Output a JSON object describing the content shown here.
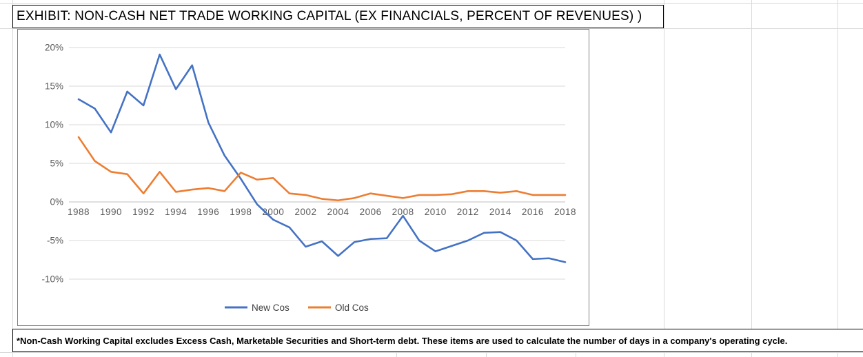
{
  "title": "EXHIBIT: NON-CASH NET TRADE WORKING CAPITAL (EX FINANCIALS, PERCENT OF REVENUES) )",
  "footnote": "*Non-Cash Working Capital excludes Excess Cash, Marketable Securities and Short-term debt. These items are used to calculate the number of days in a company's operating cycle.",
  "chart_data": {
    "type": "line",
    "title": "",
    "xlabel": "",
    "ylabel": "",
    "grid": true,
    "legend_position": "bottom",
    "xlim": [
      1988,
      2018
    ],
    "ylim": [
      -10,
      20
    ],
    "x": [
      1988,
      1989,
      1990,
      1991,
      1992,
      1993,
      1994,
      1995,
      1996,
      1997,
      1998,
      1999,
      2000,
      2001,
      2002,
      2003,
      2004,
      2005,
      2006,
      2007,
      2008,
      2009,
      2010,
      2011,
      2012,
      2013,
      2014,
      2015,
      2016,
      2017,
      2018
    ],
    "x_tick_labels": [
      "1988",
      "1990",
      "1992",
      "1994",
      "1996",
      "1998",
      "2000",
      "2002",
      "2004",
      "2006",
      "2008",
      "2010",
      "2012",
      "2014",
      "2016",
      "2018"
    ],
    "y_ticks": [
      20,
      15,
      10,
      5,
      0,
      -5,
      -10
    ],
    "y_tick_labels": [
      "20%",
      "15%",
      "10%",
      "5%",
      "0%",
      "-5%",
      "-10%"
    ],
    "axis_label_color": "#595959",
    "gridline_color": "#d9d9d9",
    "zero_line_color": "#bfbfbf",
    "legend_text_color": "#404040",
    "series": [
      {
        "name": "New Cos",
        "color": "#4472C4",
        "values": [
          13.3,
          12.1,
          9.0,
          14.3,
          12.5,
          19.1,
          14.6,
          17.7,
          10.3,
          6.0,
          3.0,
          -0.3,
          -2.3,
          -3.3,
          -5.8,
          -5.1,
          -7.0,
          -5.2,
          -4.8,
          -4.7,
          -1.8,
          -5.0,
          -6.4,
          -5.7,
          -5.0,
          -4.0,
          -3.9,
          -5.0,
          -7.4,
          -7.3,
          -7.8
        ]
      },
      {
        "name": "Old Cos",
        "color": "#ED7D31",
        "values": [
          8.4,
          5.3,
          3.9,
          3.6,
          1.1,
          3.9,
          1.3,
          1.6,
          1.8,
          1.4,
          3.8,
          2.9,
          3.1,
          1.1,
          0.9,
          0.4,
          0.2,
          0.5,
          1.1,
          0.8,
          0.5,
          0.9,
          0.9,
          1.0,
          1.4,
          1.4,
          1.2,
          1.4,
          0.9,
          0.9,
          0.9
        ]
      }
    ]
  }
}
